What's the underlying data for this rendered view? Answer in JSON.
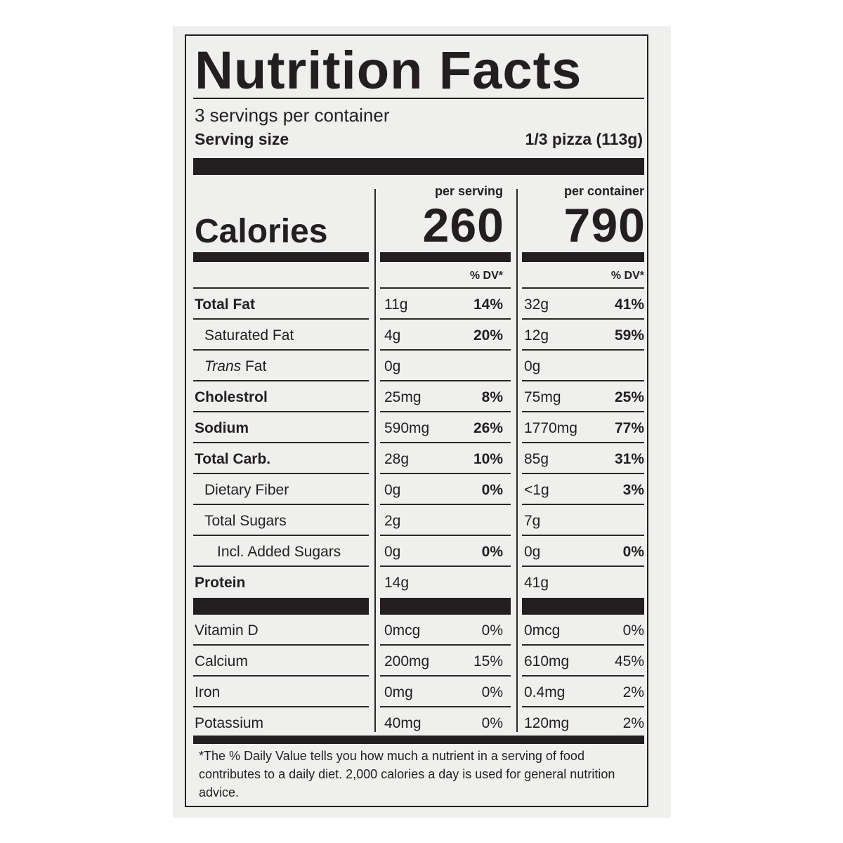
{
  "label": {
    "title": "Nutrition Facts",
    "servings_per_container": "3 servings per container",
    "serving_size_label": "Serving size",
    "serving_size_value": "1/3 pizza (113g)",
    "col_headers": {
      "per_serving": "per serving",
      "per_container": "per container"
    },
    "calories_label": "Calories",
    "calories_per_serving": "260",
    "calories_per_container": "790",
    "dv_header": "% DV*",
    "nutrients": [
      {
        "name": "Total Fat",
        "bold": true,
        "indent": 0,
        "serving_amount": "11g",
        "serving_dv": "14%",
        "container_amount": "32g",
        "container_dv": "41%"
      },
      {
        "name": "Saturated Fat",
        "bold": false,
        "indent": 1,
        "serving_amount": "4g",
        "serving_dv": "20%",
        "container_amount": "12g",
        "container_dv": "59%"
      },
      {
        "name_italic": "Trans",
        "name": " Fat",
        "bold": false,
        "indent": 1,
        "serving_amount": "0g",
        "serving_dv": "",
        "container_amount": "0g",
        "container_dv": ""
      },
      {
        "name": "Cholestrol",
        "bold": true,
        "indent": 0,
        "serving_amount": "25mg",
        "serving_dv": "8%",
        "container_amount": "75mg",
        "container_dv": "25%"
      },
      {
        "name": "Sodium",
        "bold": true,
        "indent": 0,
        "serving_amount": "590mg",
        "serving_dv": "26%",
        "container_amount": "1770mg",
        "container_dv": "77%"
      },
      {
        "name": "Total Carb.",
        "bold": true,
        "indent": 0,
        "serving_amount": "28g",
        "serving_dv": "10%",
        "container_amount": "85g",
        "container_dv": "31%"
      },
      {
        "name": "Dietary Fiber",
        "bold": false,
        "indent": 1,
        "serving_amount": "0g",
        "serving_dv": "0%",
        "container_amount": "<1g",
        "container_dv": "3%"
      },
      {
        "name": "Total Sugars",
        "bold": false,
        "indent": 1,
        "serving_amount": "2g",
        "serving_dv": "",
        "container_amount": "7g",
        "container_dv": ""
      },
      {
        "name": "Incl. Added Sugars",
        "bold": false,
        "indent": 2,
        "serving_amount": "0g",
        "serving_dv": "0%",
        "container_amount": "0g",
        "container_dv": "0%"
      },
      {
        "name": "Protein",
        "bold": true,
        "indent": 0,
        "serving_amount": "14g",
        "serving_dv": "",
        "container_amount": "41g",
        "container_dv": ""
      }
    ],
    "vitamins": [
      {
        "name": "Vitamin D",
        "serving_amount": "0mcg",
        "serving_dv": "0%",
        "container_amount": "0mcg",
        "container_dv": "0%"
      },
      {
        "name": "Calcium",
        "serving_amount": "200mg",
        "serving_dv": "15%",
        "container_amount": "610mg",
        "container_dv": "45%"
      },
      {
        "name": "Iron",
        "serving_amount": "0mg",
        "serving_dv": "0%",
        "container_amount": "0.4mg",
        "container_dv": "2%"
      },
      {
        "name": "Potassium",
        "serving_amount": "40mg",
        "serving_dv": "0%",
        "container_amount": "120mg",
        "container_dv": "2%"
      }
    ],
    "footnote": "*The % Daily Value tells you how much a nutrient in a serving of food contributes to a daily diet. 2,000 calories a day is used for general nutrition advice."
  }
}
